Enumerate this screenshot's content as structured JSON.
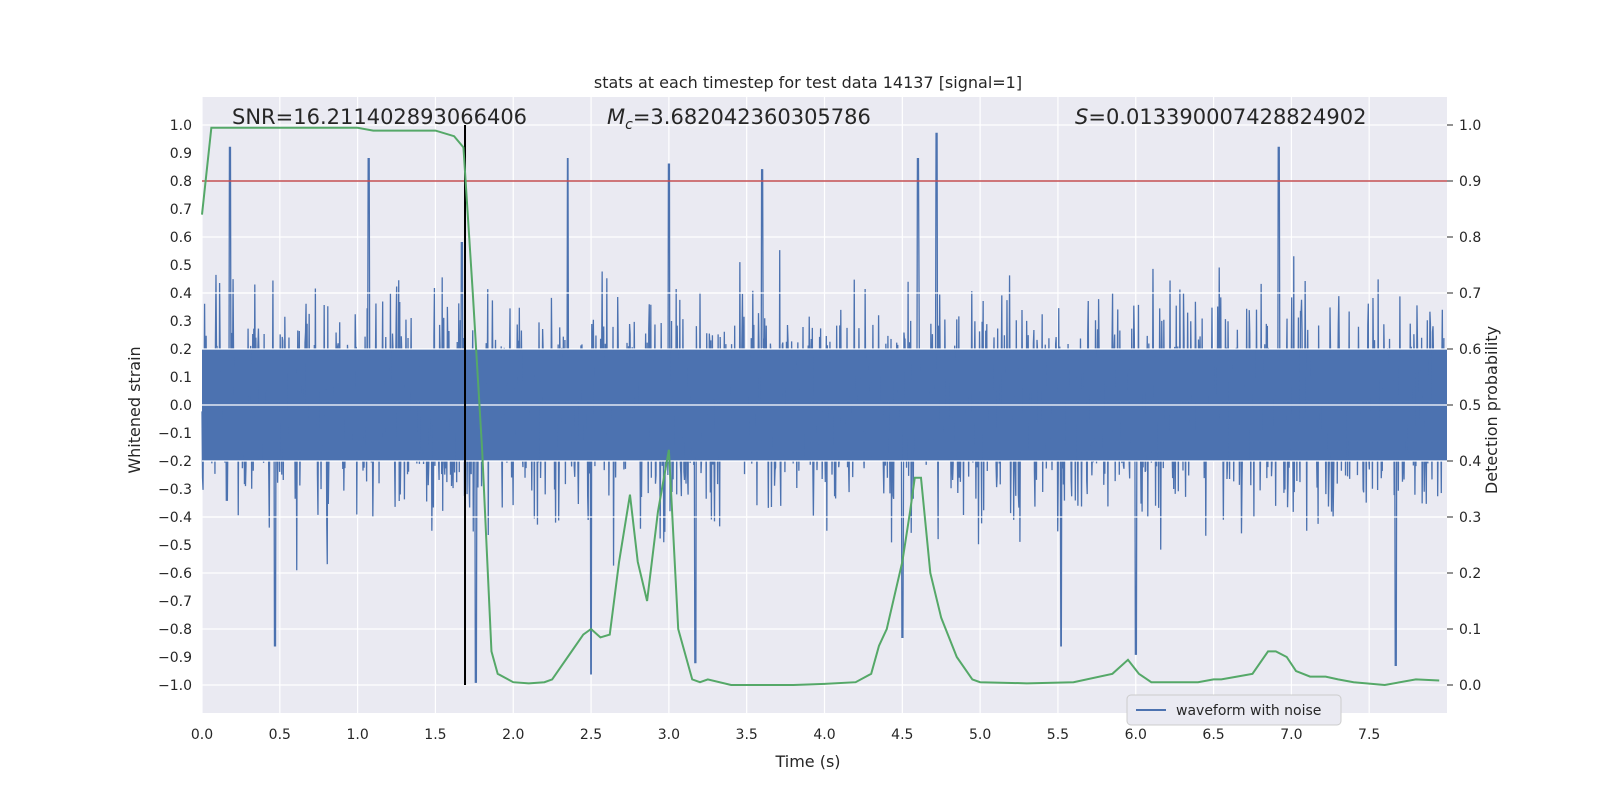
{
  "chart_data": {
    "type": "line",
    "title": "stats at each timestep for test data 14137 [signal=1]",
    "xlabel": "Time (s)",
    "ylabel": "Whitened strain",
    "ylabel_right": "Detection probability",
    "xlim": [
      0.0,
      8.0
    ],
    "ylim": [
      -1.1,
      1.1
    ],
    "ylim_right": [
      -0.05,
      1.05
    ],
    "x_ticks": [
      0.0,
      0.5,
      1.0,
      1.5,
      2.0,
      2.5,
      3.0,
      3.5,
      4.0,
      4.5,
      5.0,
      5.5,
      6.0,
      6.5,
      7.0,
      7.5
    ],
    "x_tick_labels": [
      "0.0",
      "0.5",
      "1.0",
      "1.5",
      "2.0",
      "2.5",
      "3.0",
      "3.5",
      "4.0",
      "4.5",
      "5.0",
      "5.5",
      "6.0",
      "6.5",
      "7.0",
      "7.5"
    ],
    "y_ticks": [
      1.0,
      0.9,
      0.8,
      0.7,
      0.6,
      0.5,
      0.4,
      0.3,
      0.2,
      0.1,
      0.0,
      -0.1,
      -0.2,
      -0.3,
      -0.4,
      -0.5,
      -0.6,
      -0.7,
      -0.8,
      -0.9,
      -1.0
    ],
    "y_tick_labels": [
      "1.0",
      "0.9",
      "0.8",
      "0.7",
      "0.6",
      "0.5",
      "0.4",
      "0.3",
      "0.2",
      "0.1",
      "0.0",
      "−0.1",
      "−0.2",
      "−0.3",
      "−0.4",
      "−0.5",
      "−0.6",
      "−0.7",
      "−0.8",
      "−0.9",
      "−1.0"
    ],
    "y_ticks_right": [
      1.0,
      0.9,
      0.8,
      0.7,
      0.6,
      0.5,
      0.4,
      0.3,
      0.2,
      0.1,
      0.0
    ],
    "y_tick_labels_right": [
      "1.0",
      "0.9",
      "0.8",
      "0.7",
      "0.6",
      "0.5",
      "0.4",
      "0.3",
      "0.2",
      "0.1",
      "0.0"
    ],
    "annotations": {
      "snr": "SNR=16.211402893066406",
      "mc_symbol": "M",
      "mc_sub": "c",
      "mc_value": "=3.682042360305786",
      "s_symbol": "S",
      "s_value": "=0.013390007428824902"
    },
    "threshold_right": 0.9,
    "marker_time": 1.69,
    "legend": {
      "label": "waveform with noise",
      "placement": "lower-right"
    },
    "colors": {
      "background": "#eaeaf2",
      "grid": "#ffffff",
      "waveform": "#4c72b0",
      "probability": "#55a868",
      "threshold": "#c44e52",
      "marker": "#000000"
    },
    "series": [
      {
        "name": "waveform with noise",
        "axis": "left",
        "description": "dense noisy whitened strain, ~0.45 amplitude band with spikes up to ~0.97",
        "spikes": [
          {
            "t": 0.18,
            "v": 0.92
          },
          {
            "t": 0.47,
            "v": -0.86
          },
          {
            "t": 1.07,
            "v": 0.88
          },
          {
            "t": 1.67,
            "v": 0.58
          },
          {
            "t": 1.76,
            "v": -0.99
          },
          {
            "t": 2.35,
            "v": 0.88
          },
          {
            "t": 2.5,
            "v": -0.96
          },
          {
            "t": 3.0,
            "v": 0.86
          },
          {
            "t": 3.17,
            "v": -0.92
          },
          {
            "t": 3.6,
            "v": 0.84
          },
          {
            "t": 4.5,
            "v": -0.83
          },
          {
            "t": 4.6,
            "v": 0.88
          },
          {
            "t": 4.72,
            "v": 0.97
          },
          {
            "t": 5.52,
            "v": -0.86
          },
          {
            "t": 6.0,
            "v": -0.89
          },
          {
            "t": 6.92,
            "v": 0.92
          },
          {
            "t": 7.67,
            "v": -0.93
          }
        ]
      },
      {
        "name": "detection probability",
        "axis": "right",
        "x": [
          0.0,
          0.06,
          0.15,
          0.3,
          0.5,
          0.8,
          1.0,
          1.1,
          1.2,
          1.5,
          1.62,
          1.68,
          1.74,
          1.8,
          1.86,
          1.9,
          2.0,
          2.1,
          2.2,
          2.25,
          2.3,
          2.35,
          2.45,
          2.5,
          2.56,
          2.62,
          2.68,
          2.75,
          2.8,
          2.86,
          2.93,
          3.0,
          3.06,
          3.15,
          3.2,
          3.25,
          3.4,
          3.6,
          3.8,
          4.0,
          4.2,
          4.3,
          4.35,
          4.4,
          4.5,
          4.55,
          4.58,
          4.62,
          4.68,
          4.75,
          4.85,
          4.95,
          5.0,
          5.3,
          5.6,
          5.85,
          5.95,
          6.02,
          6.1,
          6.2,
          6.3,
          6.4,
          6.5,
          6.55,
          6.65,
          6.75,
          6.85,
          6.9,
          6.97,
          7.03,
          7.12,
          7.22,
          7.3,
          7.4,
          7.6,
          7.8,
          7.95
        ],
        "values": [
          0.84,
          0.995,
          0.995,
          0.995,
          0.995,
          0.995,
          0.995,
          0.99,
          0.99,
          0.99,
          0.98,
          0.96,
          0.7,
          0.42,
          0.06,
          0.02,
          0.005,
          0.003,
          0.005,
          0.01,
          0.03,
          0.05,
          0.09,
          0.1,
          0.085,
          0.09,
          0.22,
          0.34,
          0.22,
          0.15,
          0.31,
          0.42,
          0.1,
          0.01,
          0.005,
          0.01,
          0.0,
          0.0,
          0.0,
          0.002,
          0.005,
          0.02,
          0.07,
          0.1,
          0.22,
          0.31,
          0.37,
          0.37,
          0.2,
          0.12,
          0.05,
          0.01,
          0.005,
          0.003,
          0.005,
          0.02,
          0.045,
          0.02,
          0.005,
          0.005,
          0.005,
          0.005,
          0.01,
          0.01,
          0.015,
          0.02,
          0.06,
          0.06,
          0.05,
          0.025,
          0.015,
          0.015,
          0.01,
          0.005,
          0.0,
          0.01,
          0.008
        ]
      }
    ]
  }
}
